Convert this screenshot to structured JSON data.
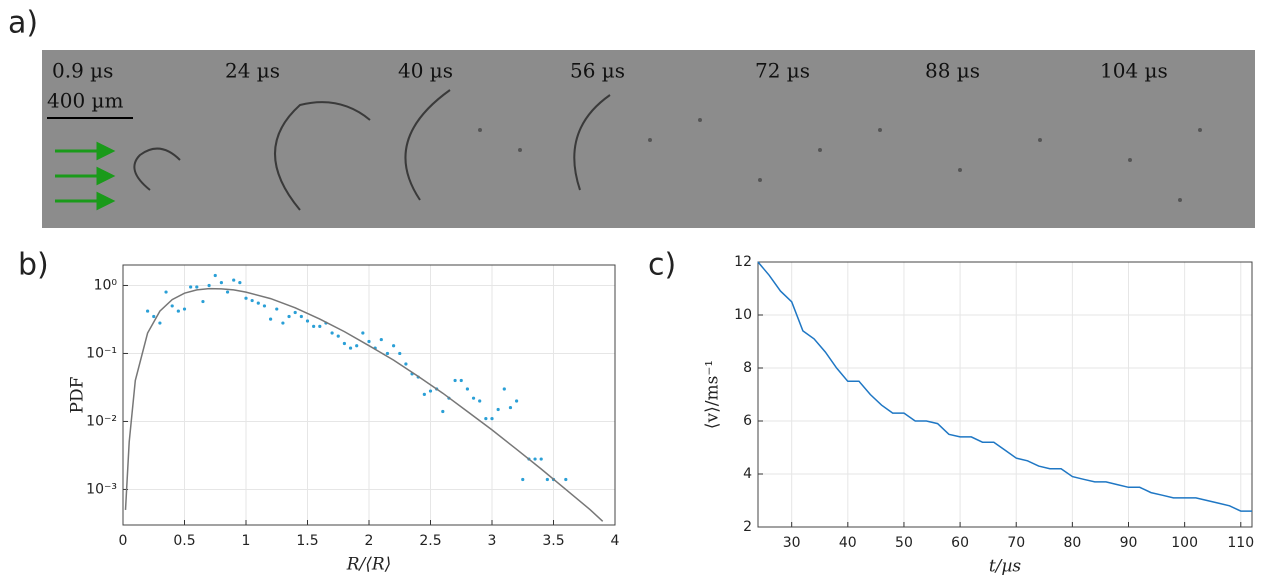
{
  "panel_labels": [
    "a)",
    "b)",
    "c)"
  ],
  "image_strip": {
    "frame_labels": [
      "0.9 µs",
      "24 µs",
      "40 µs",
      "56 µs",
      "72 µs",
      "88 µs",
      "104 µs"
    ],
    "scale_bar": "400 µm"
  },
  "chart_data": [
    {
      "type": "scatter",
      "xlabel": "R/⟨R⟩",
      "ylabel": "PDF",
      "log_y": true,
      "grid": true,
      "xlim": [
        0,
        4
      ],
      "ylim": [
        0.0003,
        2
      ],
      "xticks": [
        0,
        0.5,
        1,
        1.5,
        2,
        2.5,
        3,
        3.5,
        4
      ],
      "yticks": [
        {
          "value": 0.001,
          "label": "10⁻³"
        },
        {
          "value": 0.01,
          "label": "10⁻²"
        },
        {
          "value": 0.1,
          "label": "10⁻¹"
        },
        {
          "value": 1,
          "label": "10⁰"
        }
      ],
      "series": [
        {
          "style": "markers",
          "color": "#2a9fd6",
          "x": [
            0.2,
            0.25,
            0.3,
            0.35,
            0.4,
            0.45,
            0.5,
            0.55,
            0.6,
            0.65,
            0.7,
            0.75,
            0.8,
            0.85,
            0.9,
            0.95,
            1.0,
            1.05,
            1.1,
            1.15,
            1.2,
            1.25,
            1.3,
            1.35,
            1.4,
            1.45,
            1.5,
            1.55,
            1.6,
            1.65,
            1.7,
            1.75,
            1.8,
            1.85,
            1.9,
            1.95,
            2.0,
            2.05,
            2.1,
            2.15,
            2.2,
            2.25,
            2.3,
            2.35,
            2.4,
            2.45,
            2.5,
            2.55,
            2.6,
            2.65,
            2.7,
            2.75,
            2.8,
            2.85,
            2.9,
            2.95,
            3.0,
            3.05,
            3.1,
            3.15,
            3.2,
            3.25,
            3.3,
            3.35,
            3.4,
            3.45,
            3.5,
            3.6
          ],
          "values": [
            0.42,
            0.35,
            0.28,
            0.8,
            0.5,
            0.42,
            0.45,
            0.95,
            0.95,
            0.58,
            1.0,
            1.4,
            1.1,
            0.8,
            1.2,
            1.1,
            0.65,
            0.6,
            0.55,
            0.5,
            0.32,
            0.45,
            0.28,
            0.35,
            0.4,
            0.35,
            0.3,
            0.25,
            0.25,
            0.28,
            0.2,
            0.18,
            0.14,
            0.12,
            0.13,
            0.2,
            0.15,
            0.12,
            0.16,
            0.1,
            0.13,
            0.1,
            0.07,
            0.05,
            0.045,
            0.025,
            0.028,
            0.03,
            0.014,
            0.022,
            0.04,
            0.04,
            0.03,
            0.022,
            0.02,
            0.011,
            0.011,
            0.015,
            0.03,
            0.016,
            0.02,
            0.0014,
            0.0028,
            0.0028,
            0.0028,
            0.0014,
            0.0014,
            0.0014
          ]
        },
        {
          "style": "line",
          "color": "#777777",
          "x": [
            0.02,
            0.05,
            0.1,
            0.2,
            0.3,
            0.4,
            0.5,
            0.6,
            0.7,
            0.8,
            0.9,
            1.0,
            1.2,
            1.4,
            1.6,
            1.8,
            2.0,
            2.2,
            2.4,
            2.6,
            2.8,
            3.0,
            3.2,
            3.4,
            3.6,
            3.8,
            3.9
          ],
          "values": [
            0.0005,
            0.005,
            0.04,
            0.2,
            0.42,
            0.62,
            0.77,
            0.86,
            0.9,
            0.89,
            0.86,
            0.8,
            0.64,
            0.47,
            0.32,
            0.21,
            0.13,
            0.08,
            0.046,
            0.026,
            0.014,
            0.0075,
            0.0039,
            0.002,
            0.001,
            0.0005,
            0.00034
          ]
        }
      ]
    },
    {
      "type": "line",
      "xlabel": "t/µs",
      "ylabel": "⟨v⟩/ms⁻¹",
      "grid": true,
      "xlim": [
        24,
        112
      ],
      "ylim": [
        2,
        12
      ],
      "xticks": [
        30,
        40,
        50,
        60,
        70,
        80,
        90,
        100,
        110
      ],
      "yticks": [
        2,
        4,
        6,
        8,
        10,
        12
      ],
      "x": [
        24,
        26,
        28,
        30,
        32,
        34,
        36,
        38,
        40,
        42,
        44,
        46,
        48,
        50,
        52,
        54,
        56,
        58,
        60,
        62,
        64,
        66,
        68,
        70,
        72,
        74,
        76,
        78,
        80,
        82,
        84,
        86,
        88,
        90,
        92,
        94,
        96,
        98,
        100,
        102,
        104,
        106,
        108,
        110,
        112
      ],
      "series": [
        {
          "color": "#1f77c4",
          "values": [
            12,
            11.5,
            10.9,
            10.5,
            9.4,
            9.1,
            8.6,
            8.0,
            7.5,
            7.5,
            7.0,
            6.6,
            6.3,
            6.3,
            6.0,
            6.0,
            5.9,
            5.5,
            5.4,
            5.4,
            5.2,
            5.2,
            4.9,
            4.6,
            4.5,
            4.3,
            4.2,
            4.2,
            3.9,
            3.8,
            3.7,
            3.7,
            3.6,
            3.5,
            3.5,
            3.3,
            3.2,
            3.1,
            3.1,
            3.1,
            3.0,
            2.9,
            2.8,
            2.6,
            2.6
          ]
        }
      ]
    }
  ]
}
